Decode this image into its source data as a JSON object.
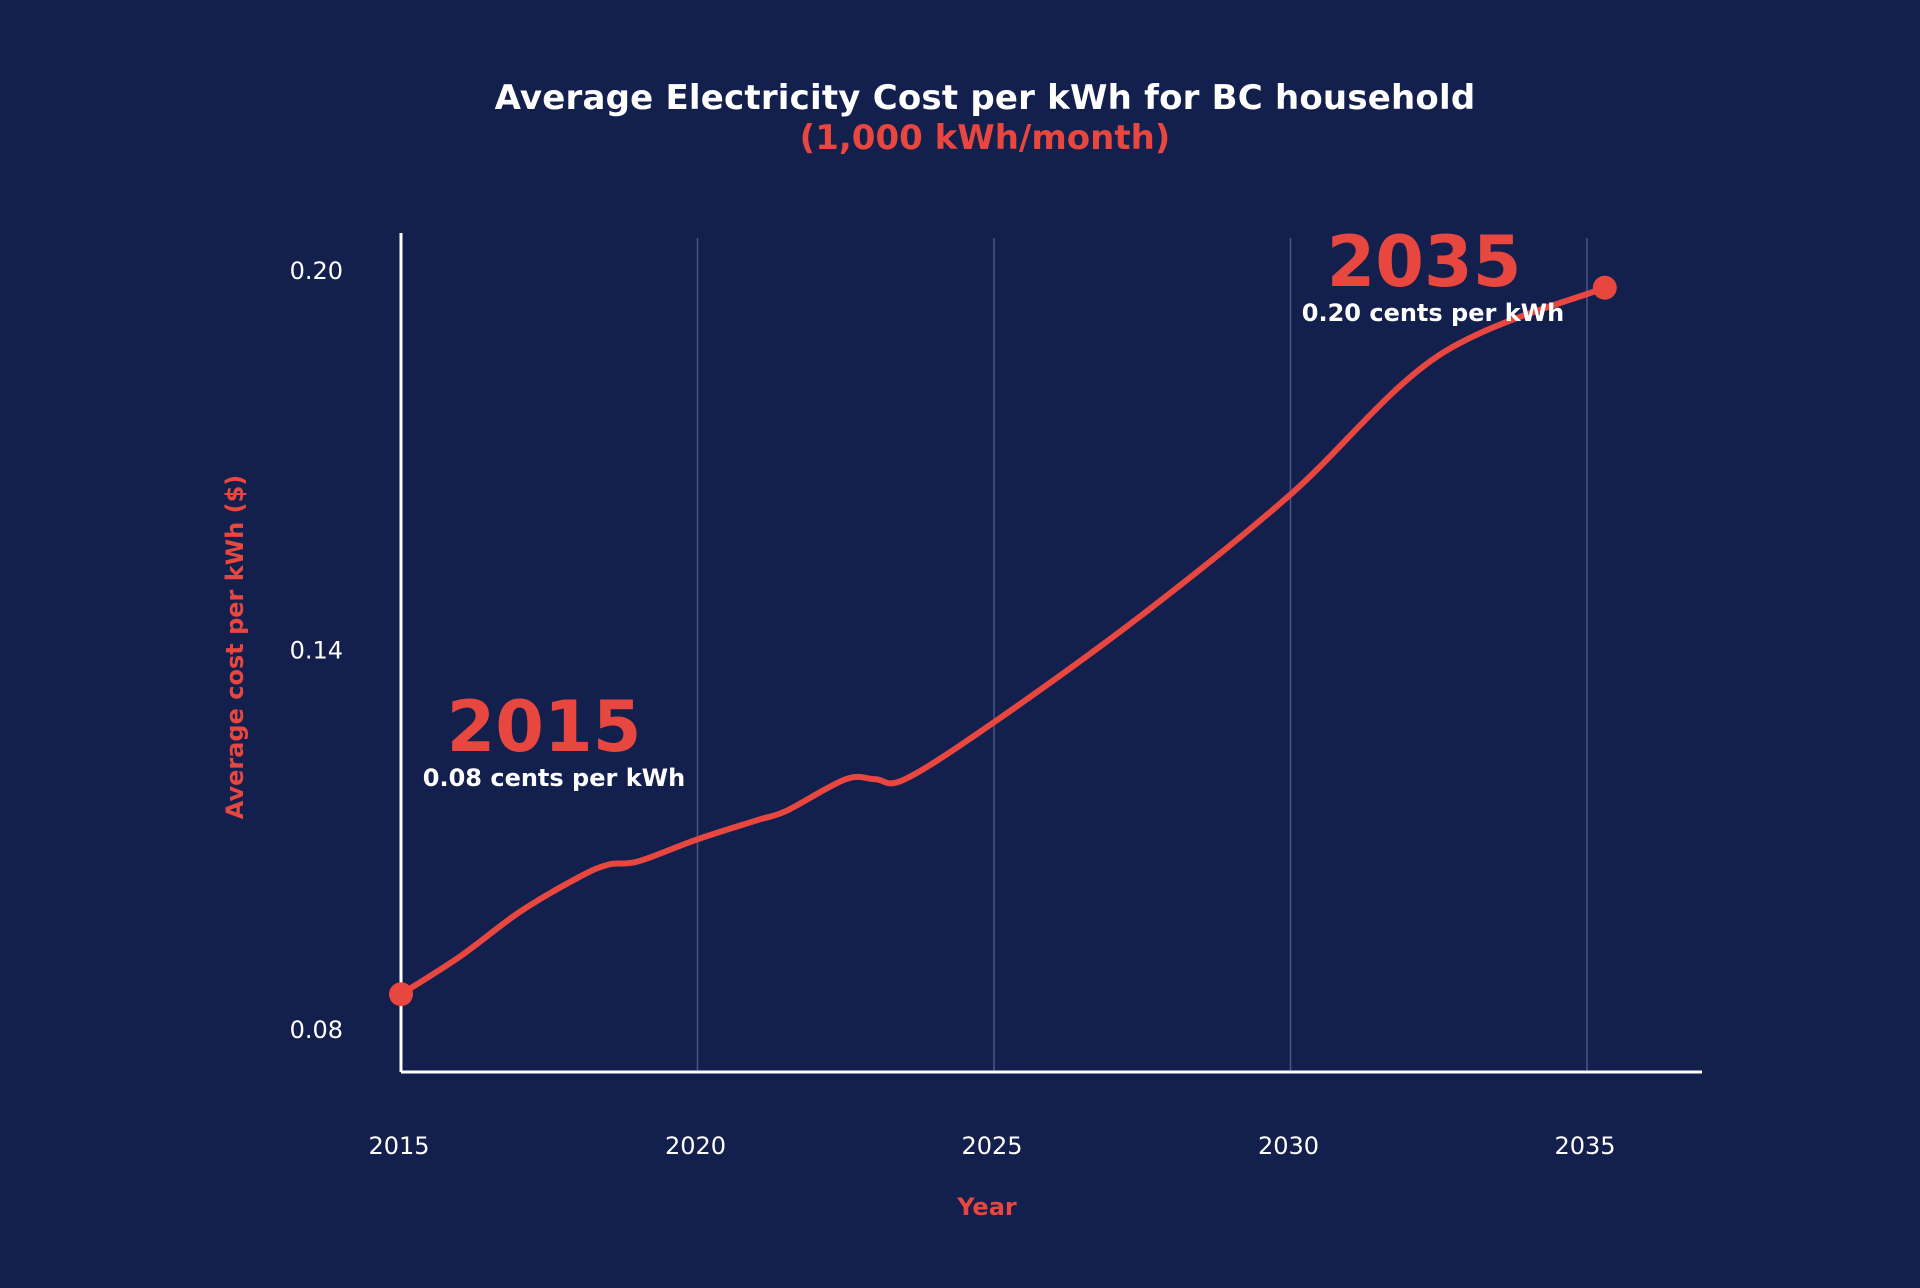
{
  "chart_data": {
    "type": "line",
    "title": "Average Electricity Cost per kWh for BC household",
    "subtitle": "(1,000 kWh/month)",
    "xlabel": "Year",
    "ylabel": "Average cost per kWh ($)",
    "x_ticks": [
      "2015",
      "2020",
      "2025",
      "2030",
      "2035"
    ],
    "y_ticks": [
      "0.20",
      "0.14",
      "0.08"
    ],
    "xlim": [
      2015,
      2037
    ],
    "ylim": [
      0.0735,
      0.2035
    ],
    "grid": "vertical",
    "series": [
      {
        "color": "#e8473f",
        "x": [
          2015.0,
          2016.0,
          2017.0,
          2018.0,
          2018.5,
          2019.0,
          2020.0,
          2021.0,
          2021.5,
          2022.5,
          2023.0,
          2023.5,
          2025.0,
          2027.5,
          2030.0,
          2032.5,
          2035.3
        ],
        "y": [
          0.0855,
          0.0915,
          0.0985,
          0.104,
          0.106,
          0.1065,
          0.11,
          0.113,
          0.1145,
          0.1195,
          0.1195,
          0.1195,
          0.1285,
          0.1455,
          0.1645,
          0.1865,
          0.1972
        ]
      }
    ],
    "annotations": [
      {
        "year": "2015",
        "text": "0.08 cents per kWh"
      },
      {
        "year": "2035",
        "text": "0.20 cents per kWh"
      }
    ]
  }
}
